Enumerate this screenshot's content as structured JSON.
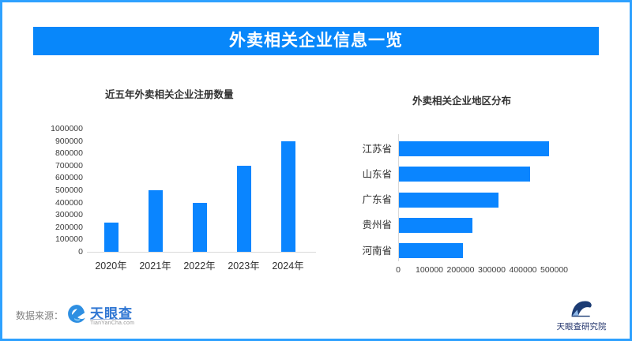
{
  "frame": {
    "title": "外卖相关企业信息一览"
  },
  "colors": {
    "accent_blue": "#0a85ff",
    "border_blue": "#2ea1ff",
    "title_bar_bg": "#0887fa",
    "axis_gray": "#d9d9d9",
    "tyc_blue": "#3077d3",
    "navy": "#24366e"
  },
  "chart_data": [
    {
      "type": "bar",
      "orientation": "vertical",
      "title": "近五年外卖相关企业注册数量",
      "categories": [
        "2020年",
        "2021年",
        "2022年",
        "2023年",
        "2024年"
      ],
      "values": [
        240000,
        500000,
        400000,
        700000,
        900000
      ],
      "xlabel": "",
      "ylabel": "",
      "ylim": [
        0,
        1000000
      ],
      "ytick_step": 100000,
      "grid": false,
      "legend": false,
      "bar_color": "#0a85ff"
    },
    {
      "type": "bar",
      "orientation": "horizontal",
      "title": "外卖相关企业地区分布",
      "categories": [
        "江苏省",
        "山东省",
        "广东省",
        "贵州省",
        "河南省"
      ],
      "values": [
        480000,
        420000,
        320000,
        235000,
        205000
      ],
      "xlabel": "",
      "ylabel": "",
      "xlim": [
        0,
        500000
      ],
      "xtick_step": 100000,
      "grid": false,
      "legend": false,
      "bar_color": "#0a85ff"
    }
  ],
  "footer": {
    "source_label": "数据来源：",
    "tyc_logo_text": "天眼查",
    "tyc_logo_sub": "TianYanCha.com",
    "research_logo_text": "天眼查研究院"
  }
}
